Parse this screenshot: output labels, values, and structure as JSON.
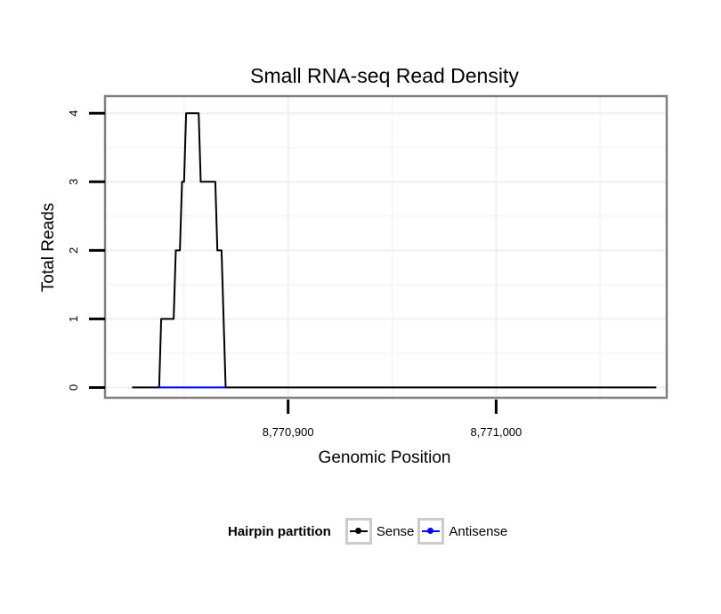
{
  "chart_data": {
    "type": "line",
    "title": "Small RNA-seq Read Density",
    "xlabel": "Genomic Position",
    "ylabel": "Total Reads",
    "xlim": [
      8770812,
      8771082
    ],
    "ylim": [
      -0.15,
      4.25
    ],
    "x_ticks": [
      8770900,
      8771000
    ],
    "x_tick_labels": [
      "8,770,900",
      "8,771,000"
    ],
    "y_ticks": [
      0,
      1,
      2,
      3,
      4
    ],
    "y_tick_labels": [
      "0",
      "1",
      "2",
      "3",
      "4"
    ],
    "grid": true,
    "series": [
      {
        "name": "Sense",
        "color": "#000000",
        "x": [
          8770825,
          8770838,
          8770839,
          8770845,
          8770846,
          8770848,
          8770849,
          8770850,
          8770851,
          8770857,
          8770858,
          8770865,
          8770866,
          8770868,
          8770870,
          8770877,
          8771077
        ],
        "y": [
          0,
          0,
          1,
          1,
          2,
          2,
          3,
          3,
          4,
          4,
          3,
          3,
          2,
          2,
          0,
          0,
          0
        ]
      },
      {
        "name": "Antisense",
        "color": "#0000ff",
        "x": [
          8770838,
          8770870
        ],
        "y": [
          0,
          0
        ]
      }
    ],
    "legend": {
      "title": "Hairpin partition",
      "position": "bottom",
      "entries": [
        "Sense",
        "Antisense"
      ]
    }
  }
}
